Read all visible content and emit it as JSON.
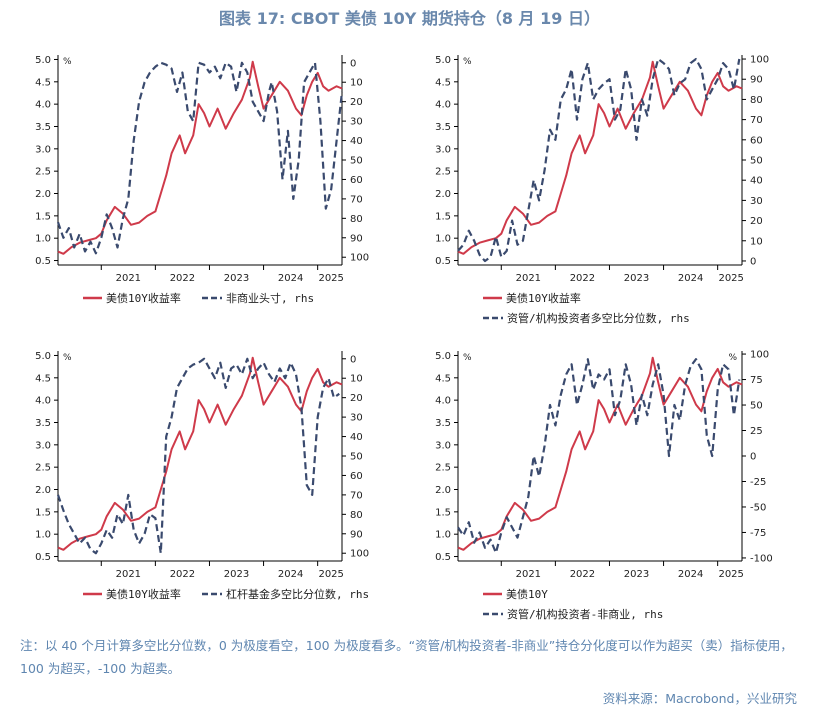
{
  "header": {
    "title": "图表 17: CBOT 美债 10Y 期货持仓（8 月 19 日）"
  },
  "colors": {
    "yield": "#cf3a4a",
    "positioning": "#3a4a6e",
    "accent": "#6a88ac",
    "note": "#5f86b0"
  },
  "chart_data": [
    {
      "type": "line",
      "x_ticks": [
        "2021",
        "2022",
        "2023",
        "2024",
        "2025"
      ],
      "xlim": [
        2020.2,
        2025.45
      ],
      "left_axis": {
        "unit": "%",
        "ticks": [
          "0.5",
          "1.0",
          "1.5",
          "2.0",
          "2.5",
          "3.0",
          "3.5",
          "4.0",
          "4.5",
          "5.0"
        ],
        "ylim": [
          0.4,
          5.1
        ]
      },
      "right_axis": {
        "unit": "",
        "reversed": true,
        "ticks": [
          "0",
          "10",
          "20",
          "30",
          "40",
          "50",
          "60",
          "70",
          "80",
          "90",
          "100"
        ],
        "ylim": [
          -4,
          104
        ]
      },
      "legend": {
        "series1": "美债10Y收益率",
        "series2": "非商业头寸, rhs"
      },
      "series": [
        {
          "name": "美债10Y收益率",
          "axis": "left",
          "style": "solid",
          "x": [
            2020.2,
            2020.3,
            2020.45,
            2020.6,
            2020.75,
            2020.9,
            2021.0,
            2021.1,
            2021.25,
            2021.4,
            2021.55,
            2021.7,
            2021.85,
            2022.0,
            2022.1,
            2022.2,
            2022.3,
            2022.45,
            2022.55,
            2022.7,
            2022.8,
            2022.9,
            2023.0,
            2023.15,
            2023.3,
            2023.45,
            2023.6,
            2023.75,
            2023.8,
            2023.9,
            2024.0,
            2024.15,
            2024.3,
            2024.45,
            2024.6,
            2024.7,
            2024.8,
            2024.9,
            2025.0,
            2025.1,
            2025.2,
            2025.35,
            2025.45
          ],
          "y": [
            0.7,
            0.65,
            0.8,
            0.9,
            0.95,
            1.0,
            1.1,
            1.4,
            1.7,
            1.55,
            1.3,
            1.35,
            1.5,
            1.6,
            2.0,
            2.4,
            2.9,
            3.3,
            2.9,
            3.3,
            4.0,
            3.8,
            3.5,
            3.9,
            3.45,
            3.8,
            4.1,
            4.6,
            4.95,
            4.4,
            3.9,
            4.2,
            4.5,
            4.3,
            3.9,
            3.75,
            4.2,
            4.5,
            4.7,
            4.4,
            4.3,
            4.4,
            4.35
          ]
        },
        {
          "name": "非商业头寸",
          "axis": "right",
          "style": "dashed",
          "x": [
            2020.2,
            2020.3,
            2020.4,
            2020.5,
            2020.6,
            2020.7,
            2020.8,
            2020.9,
            2021.0,
            2021.1,
            2021.2,
            2021.3,
            2021.4,
            2021.5,
            2021.6,
            2021.7,
            2021.8,
            2021.9,
            2022.0,
            2022.1,
            2022.2,
            2022.3,
            2022.4,
            2022.5,
            2022.6,
            2022.7,
            2022.8,
            2022.9,
            2023.0,
            2023.1,
            2023.2,
            2023.3,
            2023.4,
            2023.5,
            2023.6,
            2023.7,
            2023.8,
            2023.9,
            2024.0,
            2024.1,
            2024.15,
            2024.25,
            2024.35,
            2024.45,
            2024.55,
            2024.65,
            2024.75,
            2024.85,
            2024.95,
            2025.05,
            2025.15,
            2025.25,
            2025.35,
            2025.45
          ],
          "y": [
            82,
            90,
            85,
            95,
            88,
            97,
            92,
            98,
            90,
            78,
            85,
            95,
            80,
            70,
            40,
            20,
            10,
            5,
            2,
            0,
            1,
            3,
            15,
            5,
            25,
            30,
            0,
            1,
            5,
            2,
            8,
            0,
            2,
            15,
            0,
            5,
            20,
            25,
            30,
            15,
            10,
            25,
            60,
            35,
            70,
            50,
            10,
            5,
            0,
            30,
            75,
            65,
            40,
            15
          ]
        }
      ]
    },
    {
      "type": "line",
      "x_ticks": [
        "2021",
        "2022",
        "2023",
        "2024",
        "2025"
      ],
      "xlim": [
        2020.2,
        2025.45
      ],
      "left_axis": {
        "unit": "%",
        "ticks": [
          "0.5",
          "1.0",
          "1.5",
          "2.0",
          "2.5",
          "3.0",
          "3.5",
          "4.0",
          "4.5",
          "5.0"
        ],
        "ylim": [
          0.4,
          5.1
        ]
      },
      "right_axis": {
        "unit": "",
        "reversed": false,
        "ticks": [
          "0",
          "10",
          "20",
          "30",
          "40",
          "50",
          "60",
          "70",
          "80",
          "90",
          "100"
        ],
        "ylim": [
          -2,
          102
        ]
      },
      "legend": {
        "series1": "美债10Y收益率",
        "series2": "资管/机构投资者多空比分位数, rhs"
      },
      "series": [
        {
          "name": "美债10Y收益率",
          "axis": "left",
          "style": "solid",
          "x": [
            2020.2,
            2020.3,
            2020.45,
            2020.6,
            2020.75,
            2020.9,
            2021.0,
            2021.1,
            2021.25,
            2021.4,
            2021.55,
            2021.7,
            2021.85,
            2022.0,
            2022.1,
            2022.2,
            2022.3,
            2022.45,
            2022.55,
            2022.7,
            2022.8,
            2022.9,
            2023.0,
            2023.15,
            2023.3,
            2023.45,
            2023.6,
            2023.75,
            2023.8,
            2023.9,
            2024.0,
            2024.15,
            2024.3,
            2024.45,
            2024.6,
            2024.7,
            2024.8,
            2024.9,
            2025.0,
            2025.1,
            2025.2,
            2025.35,
            2025.45
          ],
          "y": [
            0.7,
            0.65,
            0.8,
            0.9,
            0.95,
            1.0,
            1.1,
            1.4,
            1.7,
            1.55,
            1.3,
            1.35,
            1.5,
            1.6,
            2.0,
            2.4,
            2.9,
            3.3,
            2.9,
            3.3,
            4.0,
            3.8,
            3.5,
            3.9,
            3.45,
            3.8,
            4.1,
            4.6,
            4.95,
            4.4,
            3.9,
            4.2,
            4.5,
            4.3,
            3.9,
            3.75,
            4.2,
            4.5,
            4.7,
            4.4,
            4.3,
            4.4,
            4.35
          ]
        },
        {
          "name": "资管/机构投资者多空比分位数",
          "axis": "right",
          "style": "dashed",
          "x": [
            2020.2,
            2020.3,
            2020.4,
            2020.5,
            2020.6,
            2020.7,
            2020.8,
            2020.9,
            2021.0,
            2021.1,
            2021.2,
            2021.3,
            2021.4,
            2021.5,
            2021.6,
            2021.7,
            2021.8,
            2021.9,
            2022.0,
            2022.1,
            2022.2,
            2022.3,
            2022.4,
            2022.5,
            2022.6,
            2022.7,
            2022.8,
            2022.9,
            2023.0,
            2023.1,
            2023.2,
            2023.3,
            2023.4,
            2023.5,
            2023.6,
            2023.7,
            2023.8,
            2023.9,
            2024.0,
            2024.1,
            2024.2,
            2024.3,
            2024.4,
            2024.5,
            2024.6,
            2024.7,
            2024.8,
            2024.9,
            2025.0,
            2025.1,
            2025.2,
            2025.3,
            2025.4
          ],
          "y": [
            5,
            8,
            15,
            10,
            3,
            0,
            2,
            12,
            2,
            5,
            20,
            8,
            10,
            25,
            40,
            30,
            45,
            65,
            60,
            80,
            85,
            95,
            70,
            90,
            98,
            80,
            85,
            88,
            90,
            70,
            75,
            95,
            85,
            60,
            80,
            72,
            90,
            100,
            98,
            95,
            82,
            88,
            90,
            98,
            100,
            95,
            80,
            85,
            90,
            98,
            95,
            85,
            100
          ]
        }
      ]
    },
    {
      "type": "line",
      "x_ticks": [
        "2021",
        "2022",
        "2023",
        "2024",
        "2025"
      ],
      "xlim": [
        2020.2,
        2025.45
      ],
      "left_axis": {
        "unit": "%",
        "ticks": [
          "0.5",
          "1.0",
          "1.5",
          "2.0",
          "2.5",
          "3.0",
          "3.5",
          "4.0",
          "4.5",
          "5.0"
        ],
        "ylim": [
          0.4,
          5.1
        ]
      },
      "right_axis": {
        "unit": "",
        "reversed": true,
        "ticks": [
          "0",
          "10",
          "20",
          "30",
          "40",
          "50",
          "60",
          "70",
          "80",
          "90",
          "100"
        ],
        "ylim": [
          -4,
          104
        ]
      },
      "legend": {
        "series1": "美债10Y收益率",
        "series2": "杠杆基金多空比分位数, rhs"
      },
      "series": [
        {
          "name": "美债10Y收益率",
          "axis": "left",
          "style": "solid",
          "x": [
            2020.2,
            2020.3,
            2020.45,
            2020.6,
            2020.75,
            2020.9,
            2021.0,
            2021.1,
            2021.25,
            2021.4,
            2021.55,
            2021.7,
            2021.85,
            2022.0,
            2022.1,
            2022.2,
            2022.3,
            2022.45,
            2022.55,
            2022.7,
            2022.8,
            2022.9,
            2023.0,
            2023.15,
            2023.3,
            2023.45,
            2023.6,
            2023.75,
            2023.8,
            2023.9,
            2024.0,
            2024.15,
            2024.3,
            2024.45,
            2024.6,
            2024.7,
            2024.8,
            2024.9,
            2025.0,
            2025.1,
            2025.2,
            2025.35,
            2025.45
          ],
          "y": [
            0.7,
            0.65,
            0.8,
            0.9,
            0.95,
            1.0,
            1.1,
            1.4,
            1.7,
            1.55,
            1.3,
            1.35,
            1.5,
            1.6,
            2.0,
            2.4,
            2.9,
            3.3,
            2.9,
            3.3,
            4.0,
            3.8,
            3.5,
            3.9,
            3.45,
            3.8,
            4.1,
            4.6,
            4.95,
            4.4,
            3.9,
            4.2,
            4.5,
            4.3,
            3.9,
            3.75,
            4.2,
            4.5,
            4.7,
            4.4,
            4.3,
            4.4,
            4.35
          ]
        },
        {
          "name": "杠杆基金多空比分位数",
          "axis": "right",
          "style": "dashed",
          "x": [
            2020.2,
            2020.3,
            2020.4,
            2020.5,
            2020.6,
            2020.7,
            2020.8,
            2020.9,
            2021.0,
            2021.1,
            2021.2,
            2021.3,
            2021.4,
            2021.5,
            2021.6,
            2021.7,
            2021.8,
            2021.9,
            2022.0,
            2022.1,
            2022.2,
            2022.3,
            2022.4,
            2022.5,
            2022.6,
            2022.7,
            2022.8,
            2022.9,
            2023.0,
            2023.1,
            2023.2,
            2023.3,
            2023.4,
            2023.5,
            2023.6,
            2023.7,
            2023.8,
            2023.9,
            2024.0,
            2024.1,
            2024.2,
            2024.3,
            2024.4,
            2024.5,
            2024.6,
            2024.7,
            2024.8,
            2024.9,
            2025.0,
            2025.1,
            2025.2,
            2025.3,
            2025.4
          ],
          "y": [
            70,
            78,
            85,
            90,
            95,
            92,
            98,
            100,
            95,
            88,
            92,
            80,
            85,
            70,
            88,
            95,
            90,
            80,
            82,
            100,
            40,
            30,
            15,
            10,
            5,
            3,
            2,
            0,
            5,
            10,
            2,
            15,
            5,
            3,
            8,
            0,
            10,
            5,
            2,
            8,
            12,
            5,
            10,
            2,
            8,
            25,
            65,
            70,
            30,
            15,
            10,
            20,
            18
          ]
        }
      ]
    },
    {
      "type": "line",
      "x_ticks": [
        "2021",
        "2022",
        "2023",
        "2024",
        "2025"
      ],
      "xlim": [
        2020.2,
        2025.45
      ],
      "left_axis": {
        "unit": "%",
        "ticks": [
          "0.5",
          "1.0",
          "1.5",
          "2.0",
          "2.5",
          "3.0",
          "3.5",
          "4.0",
          "4.5",
          "5.0"
        ],
        "ylim": [
          0.4,
          5.1
        ]
      },
      "right_axis": {
        "unit": "%",
        "reversed": false,
        "ticks": [
          "-100",
          "-75",
          "-50",
          "-25",
          "0",
          "25",
          "50",
          "75",
          "100"
        ],
        "ylim": [
          -103,
          103
        ]
      },
      "legend": {
        "series1": "美债10Y",
        "series2": "资管/机构投资者-非商业, rhs"
      },
      "series": [
        {
          "name": "美债10Y",
          "axis": "left",
          "style": "solid",
          "x": [
            2020.2,
            2020.3,
            2020.45,
            2020.6,
            2020.75,
            2020.9,
            2021.0,
            2021.1,
            2021.25,
            2021.4,
            2021.55,
            2021.7,
            2021.85,
            2022.0,
            2022.1,
            2022.2,
            2022.3,
            2022.45,
            2022.55,
            2022.7,
            2022.8,
            2022.9,
            2023.0,
            2023.15,
            2023.3,
            2023.45,
            2023.6,
            2023.75,
            2023.8,
            2023.9,
            2024.0,
            2024.15,
            2024.3,
            2024.45,
            2024.6,
            2024.7,
            2024.8,
            2024.9,
            2025.0,
            2025.1,
            2025.2,
            2025.35,
            2025.45
          ],
          "y": [
            0.7,
            0.65,
            0.8,
            0.9,
            0.95,
            1.0,
            1.1,
            1.4,
            1.7,
            1.55,
            1.3,
            1.35,
            1.5,
            1.6,
            2.0,
            2.4,
            2.9,
            3.3,
            2.9,
            3.3,
            4.0,
            3.8,
            3.5,
            3.9,
            3.45,
            3.8,
            4.1,
            4.6,
            4.95,
            4.4,
            3.9,
            4.2,
            4.5,
            4.3,
            3.9,
            3.75,
            4.2,
            4.5,
            4.7,
            4.4,
            4.3,
            4.4,
            4.35
          ]
        },
        {
          "name": "资管/机构投资者-非商业",
          "axis": "right",
          "style": "dashed",
          "x": [
            2020.2,
            2020.3,
            2020.4,
            2020.5,
            2020.6,
            2020.7,
            2020.8,
            2020.9,
            2021.0,
            2021.1,
            2021.2,
            2021.3,
            2021.4,
            2021.5,
            2021.6,
            2021.7,
            2021.8,
            2021.9,
            2022.0,
            2022.1,
            2022.2,
            2022.3,
            2022.4,
            2022.5,
            2022.6,
            2022.7,
            2022.8,
            2022.9,
            2023.0,
            2023.1,
            2023.2,
            2023.3,
            2023.4,
            2023.5,
            2023.6,
            2023.7,
            2023.8,
            2023.9,
            2024.0,
            2024.1,
            2024.2,
            2024.3,
            2024.4,
            2024.5,
            2024.6,
            2024.7,
            2024.8,
            2024.9,
            2025.0,
            2025.1,
            2025.2,
            2025.3,
            2025.4
          ],
          "y": [
            -70,
            -78,
            -65,
            -85,
            -75,
            -90,
            -82,
            -95,
            -75,
            -60,
            -70,
            -80,
            -60,
            -40,
            0,
            -20,
            10,
            50,
            30,
            60,
            80,
            90,
            50,
            70,
            95,
            65,
            80,
            75,
            85,
            40,
            55,
            90,
            70,
            30,
            60,
            40,
            70,
            90,
            60,
            0,
            50,
            35,
            70,
            88,
            95,
            85,
            20,
            0,
            65,
            90,
            85,
            40,
            75
          ]
        }
      ]
    }
  ],
  "footnote": "注：以 40 个月计算多空比分位数，0 为极度看空，100 为极度看多。“资管/机构投资者-非商业”持仓分化度可以作为超买（卖）指标使用，100 为超买，-100 为超卖。",
  "source": "资料来源：Macrobond，兴业研究"
}
